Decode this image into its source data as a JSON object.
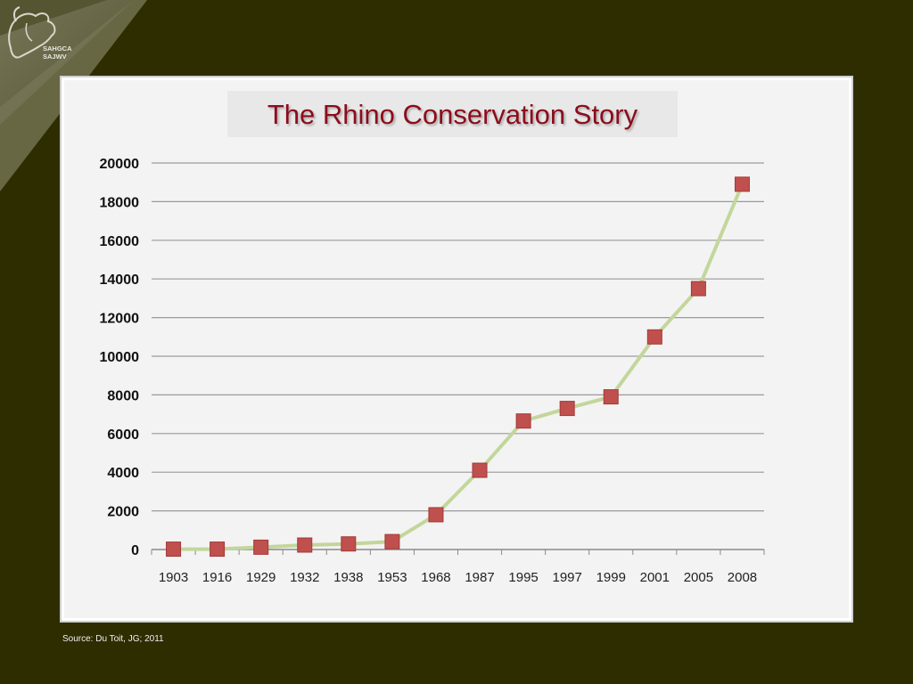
{
  "slide": {
    "title": "The Rhino Conservation Story",
    "source": "Source: Du Toit, JG; 2011",
    "logo_text_line1": "SAHGCA",
    "logo_text_line2": "SAJWV"
  },
  "colors": {
    "background": "#2e2d00",
    "title": "#8c0c1b",
    "line": "#c3d69b",
    "marker": "#c0504d"
  },
  "chart_data": {
    "type": "line",
    "title": "",
    "xlabel": "",
    "ylabel": "",
    "categories": [
      "1903",
      "1916",
      "1929",
      "1932",
      "1938",
      "1953",
      "1968",
      "1987",
      "1995",
      "1997",
      "1999",
      "2001",
      "2005",
      "2008"
    ],
    "series": [
      {
        "values": [
          20,
          20,
          120,
          230,
          290,
          410,
          1800,
          4100,
          6650,
          7300,
          7900,
          11000,
          13500,
          18900
        ]
      }
    ],
    "ylim": [
      0,
      20000
    ],
    "yticks": [
      0,
      2000,
      4000,
      6000,
      8000,
      10000,
      12000,
      14000,
      16000,
      18000,
      20000
    ],
    "grid": true,
    "legend": "none"
  }
}
